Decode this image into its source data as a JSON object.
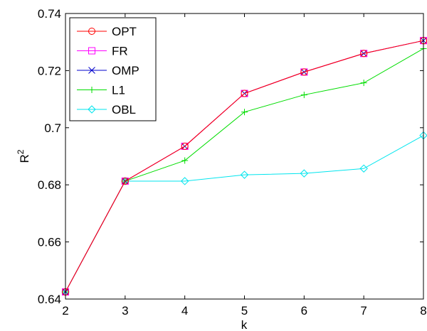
{
  "chart_data": {
    "type": "line",
    "xlabel": "k",
    "ylabel": "R",
    "ylabel_superscript": "2",
    "xlim": [
      2,
      8
    ],
    "ylim": [
      0.64,
      0.74
    ],
    "x": [
      2,
      3,
      4,
      5,
      6,
      7,
      8
    ],
    "x_ticks": [
      "2",
      "3",
      "4",
      "5",
      "6",
      "7",
      "8"
    ],
    "y_ticks": [
      0.64,
      0.66,
      0.68,
      0.7,
      0.72,
      0.74
    ],
    "y_tick_labels": [
      "0.64",
      "0.66",
      "0.68",
      "0.7",
      "0.72",
      "0.74"
    ],
    "grid": false,
    "legend_position": "top-left",
    "series": [
      {
        "name": "OPT",
        "color": "#ff0000",
        "marker": "circle",
        "values": [
          0.6425,
          0.6813,
          0.6935,
          0.712,
          0.7195,
          0.726,
          0.7305
        ]
      },
      {
        "name": "FR",
        "color": "#ff00ff",
        "marker": "square",
        "values": [
          0.6425,
          0.6813,
          0.6935,
          0.712,
          0.7195,
          0.726,
          0.7305
        ]
      },
      {
        "name": "OMP",
        "color": "#0000cc",
        "marker": "x",
        "values": [
          0.6425,
          0.6813,
          0.6935,
          0.712,
          0.7195,
          0.726,
          0.7305
        ]
      },
      {
        "name": "L1",
        "color": "#00dd00",
        "marker": "plus",
        "values": [
          0.6425,
          0.6813,
          0.6885,
          0.7055,
          0.7115,
          0.7157,
          0.7277
        ]
      },
      {
        "name": "OBL",
        "color": "#00e5ee",
        "marker": "diamond",
        "values": [
          0.6425,
          0.6813,
          0.6813,
          0.6835,
          0.684,
          0.6857,
          0.6973
        ]
      }
    ]
  }
}
